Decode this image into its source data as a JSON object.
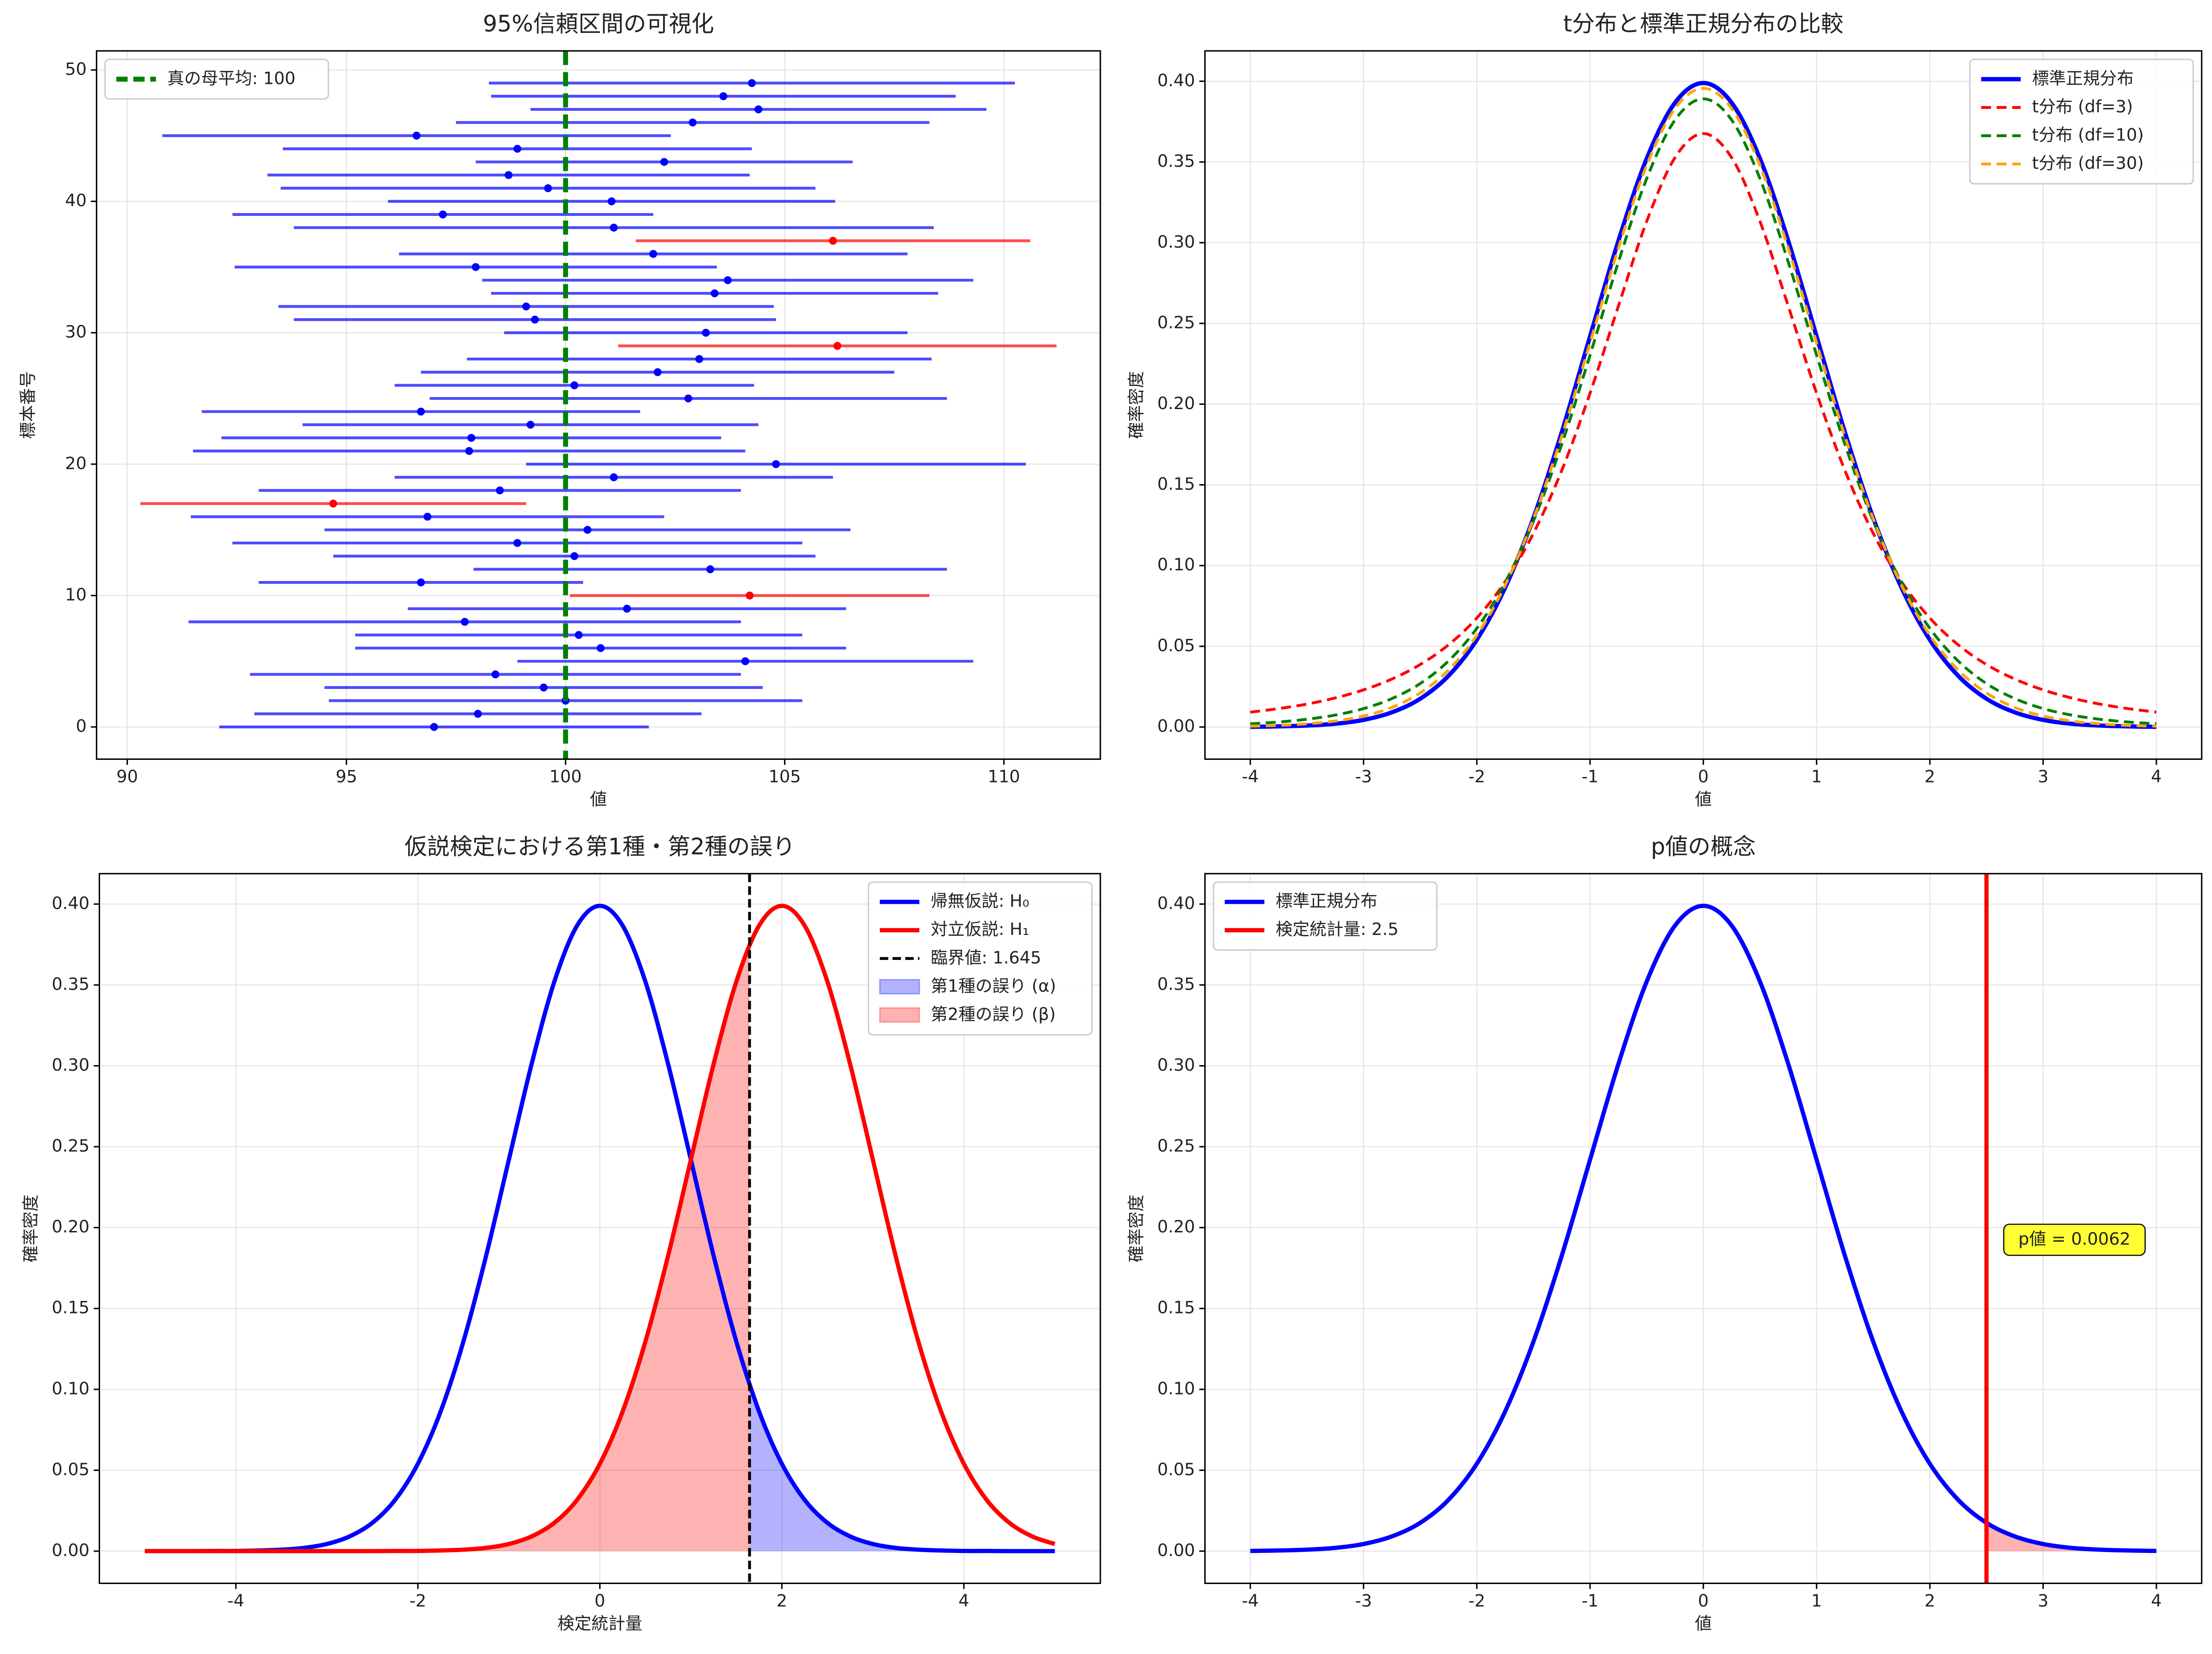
{
  "chart_data": [
    {
      "type": "errorbar",
      "title": "95%信頼区間の可視化",
      "xlabel": "値",
      "ylabel": "標本番号",
      "y": [
        0,
        1,
        2,
        3,
        4,
        5,
        6,
        7,
        8,
        9,
        10,
        11,
        12,
        13,
        14,
        15,
        16,
        17,
        18,
        19,
        20,
        21,
        22,
        23,
        24,
        25,
        26,
        27,
        28,
        29,
        30,
        31,
        32,
        33,
        34,
        35,
        36,
        37,
        38,
        39,
        40,
        41,
        42,
        43,
        44,
        45,
        46,
        47,
        48,
        49
      ],
      "values": [
        97.0,
        98.0,
        100.0,
        99.5,
        98.4,
        104.1,
        100.8,
        100.3,
        97.7,
        101.4,
        104.2,
        96.7,
        103.3,
        100.2,
        98.9,
        100.5,
        96.85,
        94.7,
        98.5,
        101.1,
        104.8,
        97.8,
        97.85,
        99.2,
        96.7,
        102.8,
        100.2,
        102.1,
        103.05,
        106.2,
        103.2,
        99.3,
        99.1,
        103.4,
        103.7,
        97.95,
        102.0,
        106.1,
        101.1,
        97.2,
        101.05,
        99.6,
        98.7,
        102.25,
        98.9,
        96.6,
        102.9,
        104.4,
        103.6,
        104.25
      ],
      "errors": [
        4.9,
        5.1,
        5.4,
        5.0,
        5.6,
        5.2,
        5.6,
        5.1,
        6.3,
        5.0,
        4.1,
        3.7,
        5.4,
        5.5,
        6.5,
        6.0,
        5.4,
        4.4,
        5.5,
        5.0,
        5.7,
        6.3,
        5.7,
        5.2,
        5.0,
        5.9,
        4.1,
        5.4,
        5.3,
        5.0,
        4.6,
        5.5,
        5.65,
        5.1,
        5.6,
        5.5,
        5.8,
        4.5,
        7.3,
        4.8,
        5.1,
        6.1,
        5.5,
        4.3,
        5.35,
        5.8,
        5.4,
        5.2,
        5.3,
        6.0
      ],
      "color": "#0000ff",
      "miss_color": "#ff0000",
      "reference": {
        "value": 100,
        "label": "真の母平均: 100",
        "color": "#008000"
      },
      "xlim": [
        89.3,
        112.2
      ],
      "ylim": [
        -2.45,
        51.45
      ],
      "xticks": [
        90,
        95,
        100,
        105,
        110
      ],
      "yticks": [
        0,
        10,
        20,
        30,
        40,
        50
      ],
      "grid": true,
      "legend": "upper left"
    },
    {
      "type": "line",
      "title": "t分布と標準正規分布の比較",
      "xlabel": "値",
      "ylabel": "確率密度",
      "x": [
        -4,
        -3.75,
        -3.5,
        -3.25,
        -3,
        -2.75,
        -2.5,
        -2.25,
        -2,
        -1.75,
        -1.5,
        -1.25,
        -1,
        -0.75,
        -0.5,
        -0.25,
        0,
        0.25,
        0.5,
        0.75,
        1,
        1.25,
        1.5,
        1.75,
        2,
        2.25,
        2.5,
        2.75,
        3,
        3.25,
        3.5,
        3.75,
        4
      ],
      "series": [
        {
          "name": "標準正規分布",
          "color": "#0000ff",
          "style": "solid",
          "width": 3,
          "values": [
            0.0001,
            0.0004,
            0.0009,
            0.002,
            0.0044,
            0.0091,
            0.0175,
            0.0317,
            0.054,
            0.0863,
            0.1295,
            0.1826,
            0.242,
            0.3011,
            0.3521,
            0.3867,
            0.3989,
            0.3867,
            0.3521,
            0.3011,
            0.242,
            0.1826,
            0.1295,
            0.0863,
            0.054,
            0.0317,
            0.0175,
            0.0091,
            0.0044,
            0.002,
            0.0009,
            0.0004,
            0.0001
          ]
        },
        {
          "name": "t分布 (df=3)",
          "color": "#ff0000",
          "style": "dashed",
          "width": 2,
          "values": [
            0.0092,
            0.0114,
            0.0142,
            0.018,
            0.023,
            0.0297,
            0.0387,
            0.0509,
            0.0675,
            0.09,
            0.12,
            0.1589,
            0.2068,
            0.2607,
            0.3132,
            0.3527,
            0.3676,
            0.3527,
            0.3132,
            0.2607,
            0.2068,
            0.1589,
            0.12,
            0.09,
            0.0675,
            0.0509,
            0.0387,
            0.0297,
            0.023,
            0.018,
            0.0142,
            0.0114,
            0.0092
          ]
        },
        {
          "name": "t分布 (df=10)",
          "color": "#008000",
          "style": "dashed",
          "width": 2,
          "values": [
            0.002,
            0.0031,
            0.0048,
            0.0074,
            0.0114,
            0.0176,
            0.0269,
            0.0409,
            0.0611,
            0.0895,
            0.1275,
            0.1751,
            0.2304,
            0.288,
            0.3397,
            0.376,
            0.3891,
            0.376,
            0.3397,
            0.288,
            0.2304,
            0.1751,
            0.1275,
            0.0895,
            0.0611,
            0.0409,
            0.0269,
            0.0176,
            0.0114,
            0.0074,
            0.0048,
            0.0031,
            0.002
          ]
        },
        {
          "name": "t分布 (df=30)",
          "color": "#ffa500",
          "style": "dashed",
          "width": 2,
          "values": [
            0.0005,
            0.001,
            0.002,
            0.0037,
            0.0068,
            0.0121,
            0.0211,
            0.0353,
            0.0568,
            0.0877,
            0.129,
            0.1801,
            0.238,
            0.2966,
            0.3479,
            0.3831,
            0.3956,
            0.3831,
            0.3479,
            0.2966,
            0.238,
            0.1801,
            0.129,
            0.0877,
            0.0568,
            0.0353,
            0.0211,
            0.0121,
            0.0068,
            0.0037,
            0.002,
            0.001,
            0.0005
          ]
        }
      ],
      "xlim": [
        -4.4,
        4.4
      ],
      "ylim": [
        -0.0199,
        0.4188
      ],
      "xticks": [
        -4,
        -3,
        -2,
        -1,
        0,
        1,
        2,
        3,
        4
      ],
      "yticks": [
        {
          "value": 0,
          "label": "0.00"
        },
        {
          "value": 0.05,
          "label": "0.05"
        },
        {
          "value": 0.1,
          "label": "0.10"
        },
        {
          "value": 0.15,
          "label": "0.15"
        },
        {
          "value": 0.2,
          "label": "0.20"
        },
        {
          "value": 0.25,
          "label": "0.25"
        },
        {
          "value": 0.3,
          "label": "0.30"
        },
        {
          "value": 0.35,
          "label": "0.35"
        },
        {
          "value": 0.4,
          "label": "0.40"
        }
      ],
      "grid": true,
      "legend": "upper right"
    },
    {
      "type": "line",
      "title": "仮説検定における第1種・第2種の誤り",
      "xlabel": "検定統計量",
      "ylabel": "確率密度",
      "x": [
        -5,
        -4.75,
        -4.5,
        -4.25,
        -4,
        -3.75,
        -3.5,
        -3.25,
        -3,
        -2.75,
        -2.5,
        -2.25,
        -2,
        -1.75,
        -1.5,
        -1.25,
        -1,
        -0.75,
        -0.5,
        -0.25,
        0,
        0.25,
        0.5,
        0.75,
        1,
        1.25,
        1.5,
        1.75,
        2,
        2.25,
        2.5,
        2.75,
        3,
        3.25,
        3.5,
        3.75,
        4,
        4.25,
        4.5,
        4.75,
        5
      ],
      "series": [
        {
          "name": "帰無仮説: H₀",
          "color": "#0000ff",
          "style": "solid",
          "width": 3,
          "values": [
            0,
            0,
            0,
            0.0001,
            0.0001,
            0.0004,
            0.0009,
            0.002,
            0.0044,
            0.0091,
            0.0175,
            0.0317,
            0.054,
            0.0863,
            0.1295,
            0.1826,
            0.242,
            0.3011,
            0.3521,
            0.3867,
            0.3989,
            0.3867,
            0.3521,
            0.3011,
            0.242,
            0.1826,
            0.1295,
            0.0863,
            0.054,
            0.0317,
            0.0175,
            0.0091,
            0.0044,
            0.002,
            0.0009,
            0.0004,
            0.0001,
            0.0001,
            0,
            0,
            0
          ]
        },
        {
          "name": "対立仮説: H₁",
          "color": "#ff0000",
          "style": "solid",
          "width": 3,
          "values": [
            0,
            0,
            0,
            0,
            0,
            0,
            0,
            0,
            0,
            0,
            0,
            0.0001,
            0.0001,
            0.0004,
            0.0009,
            0.002,
            0.0044,
            0.0091,
            0.0175,
            0.0317,
            0.054,
            0.0863,
            0.1295,
            0.1826,
            0.242,
            0.3011,
            0.3521,
            0.3867,
            0.3989,
            0.3867,
            0.3521,
            0.3011,
            0.242,
            0.1826,
            0.1295,
            0.0863,
            0.054,
            0.0317,
            0.0175,
            0.0091,
            0.0044
          ]
        }
      ],
      "critical": {
        "value": 1.645,
        "label": "臨界値: 1.645",
        "color": "#000000"
      },
      "type1_error": {
        "name": "第1種の誤り (α)",
        "color": "#0000ff"
      },
      "type2_error": {
        "name": "第2種の誤り (β)",
        "color": "#ff0000"
      },
      "xlim": [
        -5.5,
        5.5
      ],
      "ylim": [
        -0.0199,
        0.4188
      ],
      "xticks": [
        -4,
        -2,
        0,
        2,
        4
      ],
      "yticks": [
        {
          "value": 0,
          "label": "0.00"
        },
        {
          "value": 0.05,
          "label": "0.05"
        },
        {
          "value": 0.1,
          "label": "0.10"
        },
        {
          "value": 0.15,
          "label": "0.15"
        },
        {
          "value": 0.2,
          "label": "0.20"
        },
        {
          "value": 0.25,
          "label": "0.25"
        },
        {
          "value": 0.3,
          "label": "0.30"
        },
        {
          "value": 0.35,
          "label": "0.35"
        },
        {
          "value": 0.4,
          "label": "0.40"
        }
      ],
      "grid": true,
      "legend": "upper right"
    },
    {
      "type": "line",
      "title": "p値の概念",
      "xlabel": "値",
      "ylabel": "確率密度",
      "x": [
        -4,
        -3.75,
        -3.5,
        -3.25,
        -3,
        -2.75,
        -2.5,
        -2.25,
        -2,
        -1.75,
        -1.5,
        -1.25,
        -1,
        -0.75,
        -0.5,
        -0.25,
        0,
        0.25,
        0.5,
        0.75,
        1,
        1.25,
        1.5,
        1.75,
        2,
        2.25,
        2.5,
        2.75,
        3,
        3.25,
        3.5,
        3.75,
        4
      ],
      "series": [
        {
          "name": "標準正規分布",
          "color": "#0000ff",
          "style": "solid",
          "width": 3,
          "values": [
            0.0001,
            0.0004,
            0.0009,
            0.002,
            0.0044,
            0.0091,
            0.0175,
            0.0317,
            0.054,
            0.0863,
            0.1295,
            0.1826,
            0.242,
            0.3011,
            0.3521,
            0.3867,
            0.3989,
            0.3867,
            0.3521,
            0.3011,
            0.242,
            0.1826,
            0.1295,
            0.0863,
            0.054,
            0.0317,
            0.0175,
            0.0091,
            0.0044,
            0.002,
            0.0009,
            0.0004,
            0.0001
          ]
        }
      ],
      "statistic": {
        "value": 2.5,
        "label": "検定統計量: 2.5",
        "color": "#ff0000"
      },
      "annotation": "p値 = 0.0062",
      "fill_color": "#ff0000",
      "xlim": [
        -4.4,
        4.4
      ],
      "ylim": [
        -0.0199,
        0.4188
      ],
      "xticks": [
        -4,
        -3,
        -2,
        -1,
        0,
        1,
        2,
        3,
        4
      ],
      "yticks": [
        {
          "value": 0,
          "label": "0.00"
        },
        {
          "value": 0.05,
          "label": "0.05"
        },
        {
          "value": 0.1,
          "label": "0.10"
        },
        {
          "value": 0.15,
          "label": "0.15"
        },
        {
          "value": 0.2,
          "label": "0.20"
        },
        {
          "value": 0.25,
          "label": "0.25"
        },
        {
          "value": 0.3,
          "label": "0.30"
        },
        {
          "value": 0.35,
          "label": "0.35"
        },
        {
          "value": 0.4,
          "label": "0.40"
        }
      ],
      "grid": true,
      "legend": "upper left"
    }
  ]
}
